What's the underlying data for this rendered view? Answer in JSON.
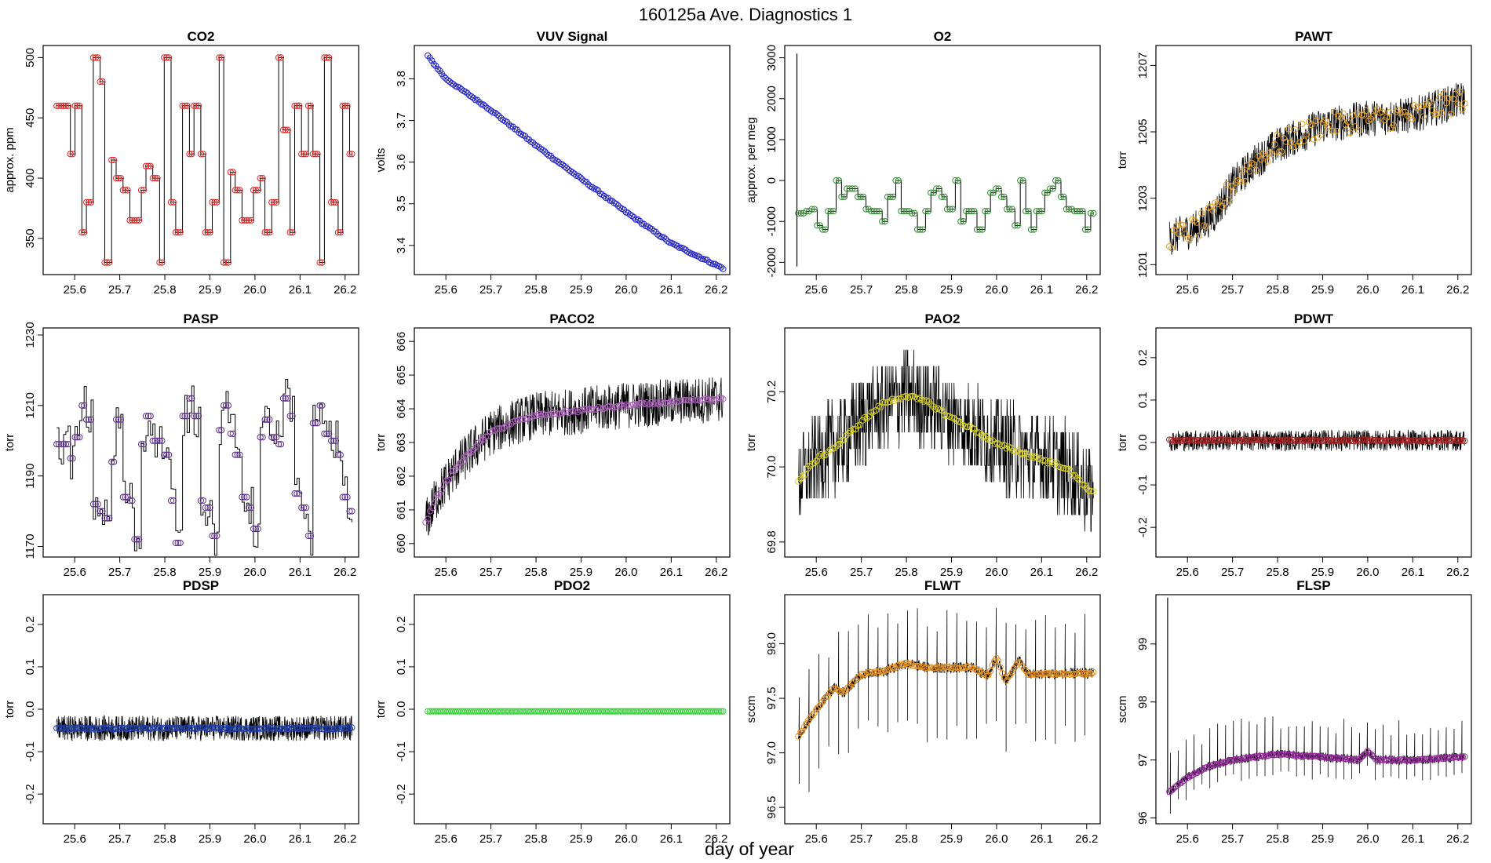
{
  "figure": {
    "title": "160125a   Ave. Diagnostics 1",
    "xlabel": "day of year"
  },
  "chart_data": [
    {
      "type": "line",
      "title": "CO2",
      "ylabel": "approx. ppm",
      "xlim": [
        25.53,
        26.23
      ],
      "ylim": [
        320,
        510
      ],
      "yticks": [
        "350",
        "400",
        "450",
        "500"
      ],
      "ytick_values": [
        350,
        400,
        450,
        500
      ],
      "xticks": [
        "25.6",
        "25.7",
        "25.8",
        "25.9",
        "26.0",
        "26.1",
        "26.2"
      ],
      "xtick_values": [
        25.6,
        25.7,
        25.8,
        25.9,
        26.0,
        26.1,
        26.2
      ],
      "series": [
        {
          "name": "CO2",
          "marker_color": "#e32222",
          "pattern": [
            460,
            460,
            420,
            460,
            355,
            380,
            500,
            480,
            330,
            415,
            400,
            390,
            365,
            365,
            390,
            410,
            400,
            330,
            500,
            380,
            355,
            460,
            420,
            460,
            420,
            355,
            380,
            500,
            330,
            405,
            390,
            365,
            365,
            390,
            400,
            355,
            380,
            500,
            440,
            355,
            460,
            420,
            460,
            420,
            330,
            500,
            380,
            355,
            460,
            420
          ],
          "start": 25.56,
          "end": 26.215,
          "points": 130,
          "noise": 0
        },
        {
          "name": "raw",
          "raw_color": "#000000",
          "from_pattern": true
        }
      ]
    },
    {
      "type": "line",
      "title": "VUV Signal",
      "ylabel": "volts",
      "xlim": [
        25.53,
        26.23
      ],
      "ylim": [
        3.33,
        3.88
      ],
      "yticks": [
        "3.4",
        "3.5",
        "3.6",
        "3.7",
        "3.8"
      ],
      "ytick_values": [
        3.4,
        3.5,
        3.6,
        3.7,
        3.8
      ],
      "xticks": [
        "25.6",
        "25.7",
        "25.8",
        "25.9",
        "26.0",
        "26.1",
        "26.2"
      ],
      "xtick_values": [
        25.6,
        25.7,
        25.8,
        25.9,
        26.0,
        26.1,
        26.2
      ],
      "series": [
        {
          "name": "VUV",
          "marker_color": "#2222cc",
          "curve": [
            [
              25.56,
              3.855
            ],
            [
              25.6,
              3.8
            ],
            [
              25.7,
              3.725
            ],
            [
              25.8,
              3.64
            ],
            [
              25.9,
              3.56
            ],
            [
              26.0,
              3.48
            ],
            [
              26.1,
              3.405
            ],
            [
              26.215,
              3.345
            ]
          ],
          "start": 25.56,
          "end": 26.215,
          "points": 150,
          "noise": 0.002
        }
      ]
    },
    {
      "type": "line",
      "title": "O2",
      "ylabel": "approx. per meg",
      "xlim": [
        25.53,
        26.23
      ],
      "ylim": [
        -2300,
        3300
      ],
      "yticks": [
        "-2000",
        "-1000",
        "0",
        "1000",
        "2000",
        "3000"
      ],
      "ytick_values": [
        -2000,
        -1000,
        0,
        1000,
        2000,
        3000
      ],
      "xticks": [
        "25.6",
        "25.7",
        "25.8",
        "25.9",
        "26.0",
        "26.1",
        "26.2"
      ],
      "xtick_values": [
        25.6,
        25.7,
        25.8,
        25.9,
        26.0,
        26.1,
        26.2
      ],
      "series": [
        {
          "name": "O2",
          "marker_color": "#2e8b2e",
          "pattern": [
            -800,
            -750,
            -700,
            -1100,
            -1200,
            -750,
            0,
            -400,
            -200,
            -200,
            -400,
            -700,
            -750,
            -750,
            -1000,
            -400,
            0,
            -750,
            -750,
            -800,
            -1200,
            -750,
            -300,
            -200,
            -400,
            -700,
            0,
            -1000,
            -750,
            -750,
            -1200,
            -750,
            -300,
            -200,
            -400,
            -700,
            -1100,
            0,
            -750,
            -1200,
            -750,
            -300,
            -200,
            0,
            -400,
            -700,
            -750,
            -750,
            -1200,
            -800
          ],
          "start": 25.56,
          "end": 26.215,
          "points": 110,
          "noise": 0,
          "spike": {
            "x": 25.557,
            "from": -2100,
            "to": 3100
          }
        }
      ]
    },
    {
      "type": "line",
      "title": "PAWT",
      "ylabel": "torr",
      "xlim": [
        25.53,
        26.23
      ],
      "ylim": [
        1200.7,
        1207.6
      ],
      "yticks": [
        "1201",
        "1203",
        "1205",
        "1207"
      ],
      "ytick_values": [
        1201,
        1203,
        1205,
        1207
      ],
      "xticks": [
        "25.6",
        "25.7",
        "25.8",
        "25.9",
        "26.0",
        "26.1",
        "26.2"
      ],
      "xtick_values": [
        25.6,
        25.7,
        25.8,
        25.9,
        26.0,
        26.1,
        26.2
      ],
      "series": [
        {
          "name": "PAWT",
          "marker_color": "#e8a020",
          "curve": [
            [
              25.56,
              1201.8
            ],
            [
              25.62,
              1202.1
            ],
            [
              25.66,
              1202.5
            ],
            [
              25.7,
              1203.4
            ],
            [
              25.75,
              1204.1
            ],
            [
              25.8,
              1204.6
            ],
            [
              25.9,
              1205.2
            ],
            [
              26.0,
              1205.4
            ],
            [
              26.1,
              1205.5
            ],
            [
              26.215,
              1206.0
            ]
          ],
          "start": 25.56,
          "end": 26.215,
          "points": 130,
          "noise": 0.35,
          "raw_noise": 0.55
        }
      ]
    },
    {
      "type": "line",
      "title": "PASP",
      "ylabel": "torr",
      "xlim": [
        25.53,
        26.23
      ],
      "ylim": [
        1167,
        1232
      ],
      "yticks": [
        "1170",
        "1190",
        "1210",
        "1230"
      ],
      "ytick_values": [
        1170,
        1190,
        1210,
        1230
      ],
      "xticks": [
        "25.6",
        "25.7",
        "25.8",
        "25.9",
        "26.0",
        "26.1",
        "26.2"
      ],
      "xtick_values": [
        25.6,
        25.7,
        25.8,
        25.9,
        26.0,
        26.1,
        26.2
      ],
      "series": [
        {
          "name": "PASP",
          "marker_color": "#5b2a8c",
          "pattern": [
            1199,
            1199,
            1195,
            1201,
            1210,
            1206,
            1182,
            1180,
            1178,
            1194,
            1206,
            1184,
            1183,
            1172,
            1199,
            1207,
            1200,
            1200,
            1196,
            1183,
            1171,
            1207,
            1212,
            1207,
            1183,
            1181,
            1173,
            1203,
            1210,
            1202,
            1196,
            1184,
            1181,
            1175,
            1201,
            1206,
            1201,
            1199,
            1212,
            1207,
            1185,
            1181,
            1173,
            1205,
            1210,
            1202,
            1200,
            1196,
            1184,
            1180
          ],
          "start": 25.56,
          "end": 26.215,
          "points": 130,
          "noise": 0,
          "raw_noise": 6
        }
      ]
    },
    {
      "type": "line",
      "title": "PACO2",
      "ylabel": "torr",
      "xlim": [
        25.53,
        26.23
      ],
      "ylim": [
        659.6,
        666.4
      ],
      "yticks": [
        "660",
        "661",
        "662",
        "663",
        "664",
        "665",
        "666"
      ],
      "ytick_values": [
        660,
        661,
        662,
        663,
        664,
        665,
        666
      ],
      "xticks": [
        "25.6",
        "25.7",
        "25.8",
        "25.9",
        "26.0",
        "26.1",
        "26.2"
      ],
      "xtick_values": [
        25.6,
        25.7,
        25.8,
        25.9,
        26.0,
        26.1,
        26.2
      ],
      "series": [
        {
          "name": "PACO2",
          "marker_color": "#b060c0",
          "curve": [
            [
              25.555,
              660.6
            ],
            [
              25.58,
              661.4
            ],
            [
              25.62,
              662.2
            ],
            [
              25.66,
              662.8
            ],
            [
              25.7,
              663.3
            ],
            [
              25.75,
              663.6
            ],
            [
              25.8,
              663.8
            ],
            [
              25.9,
              663.95
            ],
            [
              26.0,
              664.1
            ],
            [
              26.1,
              664.2
            ],
            [
              26.215,
              664.3
            ]
          ],
          "start": 25.555,
          "end": 26.215,
          "points": 130,
          "noise": 0.04,
          "raw_noise": 0.7
        }
      ]
    },
    {
      "type": "line",
      "title": "PAO2",
      "ylabel": "torr",
      "xlim": [
        25.53,
        26.23
      ],
      "ylim": [
        69.76,
        70.37
      ],
      "yticks": [
        "69.8",
        "70.0",
        "70.2"
      ],
      "ytick_values": [
        69.8,
        70.0,
        70.2
      ],
      "xticks": [
        "25.6",
        "25.7",
        "25.8",
        "25.9",
        "26.0",
        "26.1",
        "26.2"
      ],
      "xtick_values": [
        25.6,
        25.7,
        25.8,
        25.9,
        26.0,
        26.1,
        26.2
      ],
      "series": [
        {
          "name": "PAO2",
          "marker_color": "#d8d020",
          "curve": [
            [
              25.56,
              69.96
            ],
            [
              25.6,
              70.02
            ],
            [
              25.65,
              70.06
            ],
            [
              25.7,
              70.12
            ],
            [
              25.75,
              70.17
            ],
            [
              25.8,
              70.19
            ],
            [
              25.85,
              70.17
            ],
            [
              25.9,
              70.13
            ],
            [
              25.95,
              70.1
            ],
            [
              26.0,
              70.06
            ],
            [
              26.05,
              70.04
            ],
            [
              26.1,
              70.02
            ],
            [
              26.15,
              70.0
            ],
            [
              26.215,
              69.93
            ]
          ],
          "start": 25.56,
          "end": 26.215,
          "points": 130,
          "noise": 0.005,
          "raw_noise": 0.12,
          "quantum": 0.044
        }
      ]
    },
    {
      "type": "line",
      "title": "PDWT",
      "ylabel": "torr",
      "xlim": [
        25.53,
        26.23
      ],
      "ylim": [
        -0.27,
        0.27
      ],
      "yticks": [
        "-0.2",
        "-0.1",
        "0.0",
        "0.1",
        "0.2"
      ],
      "ytick_values": [
        -0.2,
        -0.1,
        0.0,
        0.1,
        0.2
      ],
      "xticks": [
        "25.6",
        "25.7",
        "25.8",
        "25.9",
        "26.0",
        "26.1",
        "26.2"
      ],
      "xtick_values": [
        25.6,
        25.7,
        25.8,
        25.9,
        26.0,
        26.1,
        26.2
      ],
      "series": [
        {
          "name": "PDWT",
          "marker_color": "#b02020",
          "curve": [
            [
              25.56,
              0.005
            ],
            [
              26.215,
              0.005
            ]
          ],
          "start": 25.56,
          "end": 26.215,
          "points": 150,
          "noise": 0.002,
          "raw_noise": 0.025
        }
      ]
    },
    {
      "type": "line",
      "title": "PDSP",
      "ylabel": "torr",
      "xlim": [
        25.53,
        26.23
      ],
      "ylim": [
        -0.27,
        0.27
      ],
      "yticks": [
        "-0.2",
        "-0.1",
        "0.0",
        "0.1",
        "0.2"
      ],
      "ytick_values": [
        -0.2,
        -0.1,
        0.0,
        0.1,
        0.2
      ],
      "xticks": [
        "25.6",
        "25.7",
        "25.8",
        "25.9",
        "26.0",
        "26.1",
        "26.2"
      ],
      "xtick_values": [
        25.6,
        25.7,
        25.8,
        25.9,
        26.0,
        26.1,
        26.2
      ],
      "series": [
        {
          "name": "PDSP",
          "marker_color": "#2040b0",
          "curve": [
            [
              25.56,
              -0.045
            ],
            [
              26.215,
              -0.045
            ]
          ],
          "start": 25.56,
          "end": 26.215,
          "points": 150,
          "noise": 0.002,
          "raw_noise": 0.03
        }
      ]
    },
    {
      "type": "line",
      "title": "PDO2",
      "ylabel": "torr",
      "xlim": [
        25.53,
        26.23
      ],
      "ylim": [
        -0.27,
        0.27
      ],
      "yticks": [
        "-0.2",
        "-0.1",
        "0.0",
        "0.1",
        "0.2"
      ],
      "ytick_values": [
        -0.2,
        -0.1,
        0.0,
        0.1,
        0.2
      ],
      "xticks": [
        "25.6",
        "25.7",
        "25.8",
        "25.9",
        "26.0",
        "26.1",
        "26.2"
      ],
      "xtick_values": [
        25.6,
        25.7,
        25.8,
        25.9,
        26.0,
        26.1,
        26.2
      ],
      "series": [
        {
          "name": "PDO2",
          "marker_color": "#30d030",
          "curve": [
            [
              25.56,
              -0.005
            ],
            [
              26.215,
              -0.005
            ]
          ],
          "start": 25.56,
          "end": 26.215,
          "points": 150,
          "noise": 0,
          "raw_noise": 0
        }
      ]
    },
    {
      "type": "line",
      "title": "FLWT",
      "ylabel": "sccm",
      "xlim": [
        25.53,
        26.23
      ],
      "ylim": [
        96.35,
        98.45
      ],
      "yticks": [
        "96.5",
        "97.0",
        "97.5",
        "98.0"
      ],
      "ytick_values": [
        96.5,
        97.0,
        97.5,
        98.0
      ],
      "xticks": [
        "25.6",
        "25.7",
        "25.8",
        "25.9",
        "26.0",
        "26.1",
        "26.2"
      ],
      "xtick_values": [
        25.6,
        25.7,
        25.8,
        25.9,
        26.0,
        26.1,
        26.2
      ],
      "series": [
        {
          "name": "FLWT",
          "marker_color": "#e8901a",
          "curve": [
            [
              25.56,
              97.15
            ],
            [
              25.6,
              97.4
            ],
            [
              25.64,
              97.6
            ],
            [
              25.66,
              97.55
            ],
            [
              25.7,
              97.72
            ],
            [
              25.75,
              97.75
            ],
            [
              25.8,
              97.82
            ],
            [
              25.85,
              97.78
            ],
            [
              25.95,
              97.78
            ],
            [
              25.98,
              97.7
            ],
            [
              26.0,
              97.88
            ],
            [
              26.02,
              97.65
            ],
            [
              26.05,
              97.85
            ],
            [
              26.07,
              97.72
            ],
            [
              26.215,
              97.73
            ]
          ],
          "start": 25.56,
          "end": 26.215,
          "points": 150,
          "noise": 0.01,
          "raw_noise": 0.05,
          "spikes": {
            "up": 0.55,
            "down": -0.7,
            "every": 5
          }
        }
      ]
    },
    {
      "type": "line",
      "title": "FLSP",
      "ylabel": "sccm",
      "xlim": [
        25.53,
        26.23
      ],
      "ylim": [
        95.9,
        99.85
      ],
      "yticks": [
        "96",
        "97",
        "98",
        "99"
      ],
      "ytick_values": [
        96,
        97,
        98,
        99
      ],
      "xticks": [
        "25.6",
        "25.7",
        "25.8",
        "25.9",
        "26.0",
        "26.1",
        "26.2"
      ],
      "xtick_values": [
        25.6,
        25.7,
        25.8,
        25.9,
        26.0,
        26.1,
        26.2
      ],
      "series": [
        {
          "name": "FLSP",
          "marker_color": "#9a2aa0",
          "curve": [
            [
              25.56,
              96.45
            ],
            [
              25.6,
              96.7
            ],
            [
              25.65,
              96.9
            ],
            [
              25.7,
              97.0
            ],
            [
              25.8,
              97.1
            ],
            [
              25.9,
              97.05
            ],
            [
              25.98,
              97.0
            ],
            [
              26.0,
              97.15
            ],
            [
              26.02,
              97.0
            ],
            [
              26.1,
              97.0
            ],
            [
              26.215,
              97.05
            ]
          ],
          "start": 25.56,
          "end": 26.215,
          "points": 150,
          "noise": 0.01,
          "raw_noise": 0.08,
          "spikes": {
            "up": 0.7,
            "down": -0.4,
            "every": 4
          },
          "spike": {
            "x": 25.556,
            "from": 96.4,
            "to": 99.8
          }
        }
      ]
    }
  ]
}
